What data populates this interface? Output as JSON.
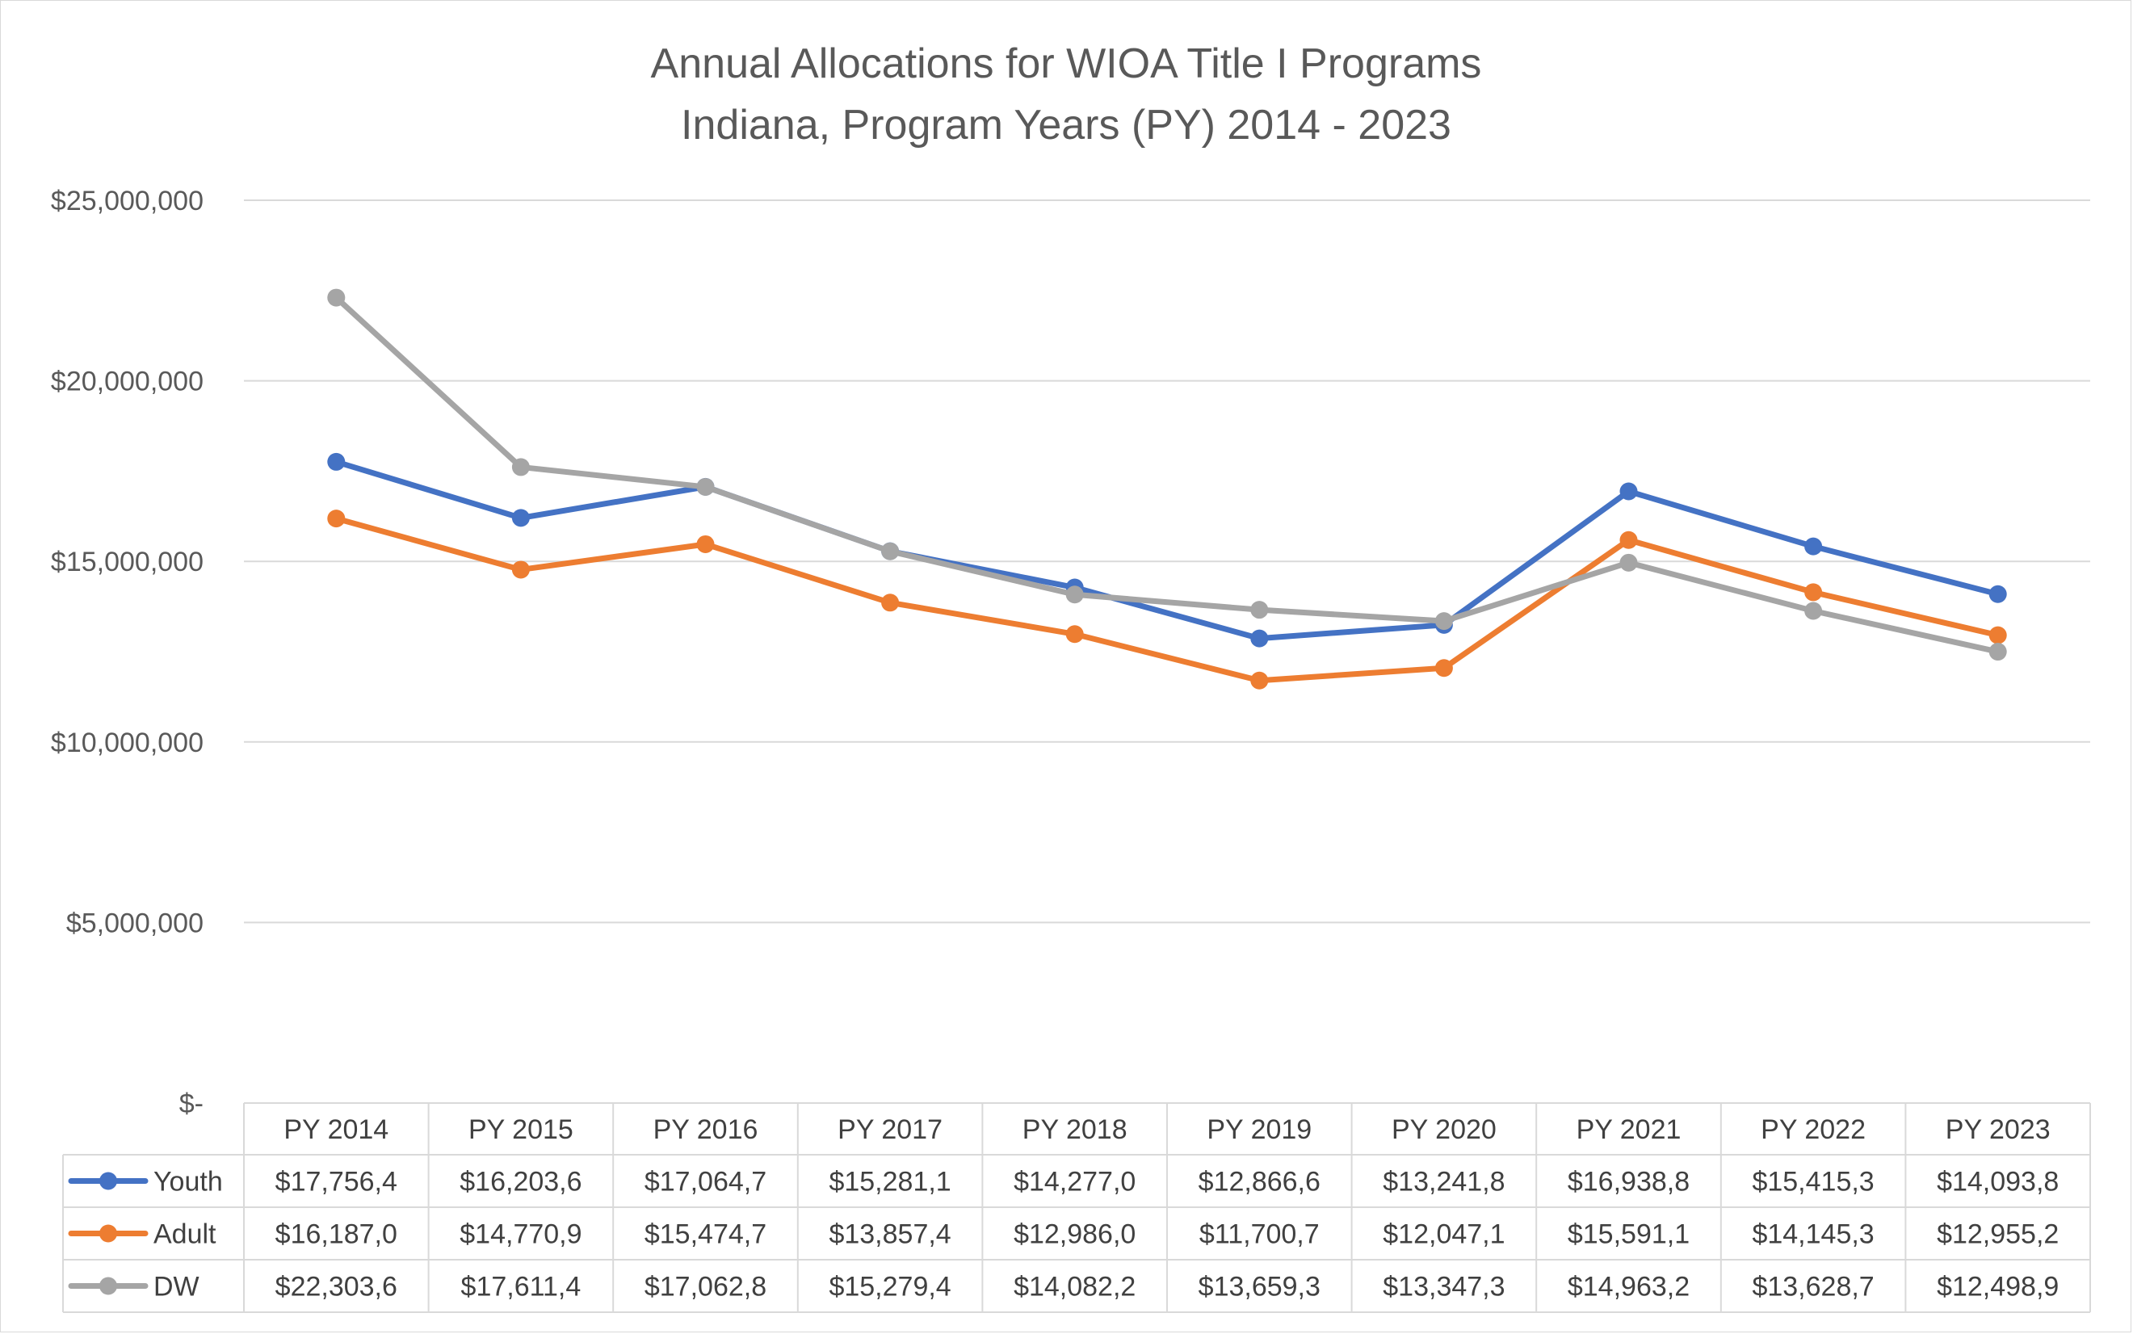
{
  "chart_data": {
    "type": "line",
    "title": "Annual Allocations for WIOA Title I Programs",
    "subtitle": "Indiana, Program Years (PY) 2014 - 2023",
    "categories": [
      "PY 2014",
      "PY 2015",
      "PY 2016",
      "PY 2017",
      "PY 2018",
      "PY 2019",
      "PY 2020",
      "PY 2021",
      "PY 2022",
      "PY 2023"
    ],
    "ylim": [
      0,
      25000000
    ],
    "y_ticks": [
      0,
      5000000,
      10000000,
      15000000,
      20000000,
      25000000
    ],
    "y_tick_labels": [
      "$-",
      "$5,000,000",
      "$10,000,000",
      "$15,000,000",
      "$20,000,000",
      "$25,000,000"
    ],
    "grid": true,
    "legend_placement": "data-table",
    "series": [
      {
        "name": "Youth",
        "color": "#4472C4",
        "values": [
          17756400,
          16203600,
          17064700,
          15281100,
          14277000,
          12866600,
          13241800,
          16938800,
          15415300,
          14093800
        ],
        "table_labels": [
          "$17,756,4",
          "$16,203,6",
          "$17,064,7",
          "$15,281,1",
          "$14,277,0",
          "$12,866,6",
          "$13,241,8",
          "$16,938,8",
          "$15,415,3",
          "$14,093,8"
        ]
      },
      {
        "name": "Adult",
        "color": "#ED7D31",
        "values": [
          16187000,
          14770900,
          15474700,
          13857400,
          12986000,
          11700700,
          12047100,
          15591100,
          14145300,
          12955200
        ],
        "table_labels": [
          "$16,187,0",
          "$14,770,9",
          "$15,474,7",
          "$13,857,4",
          "$12,986,0",
          "$11,700,7",
          "$12,047,1",
          "$15,591,1",
          "$14,145,3",
          "$12,955,2"
        ]
      },
      {
        "name": "DW",
        "color": "#A5A5A5",
        "values": [
          22303600,
          17611400,
          17062800,
          15279400,
          14082200,
          13659300,
          13347300,
          14963200,
          13628700,
          12498900
        ],
        "table_labels": [
          "$22,303,6",
          "$17,611,4",
          "$17,062,8",
          "$15,279,4",
          "$14,082,2",
          "$13,659,3",
          "$13,347,3",
          "$14,963,2",
          "$13,628,7",
          "$12,498,9"
        ]
      }
    ]
  }
}
